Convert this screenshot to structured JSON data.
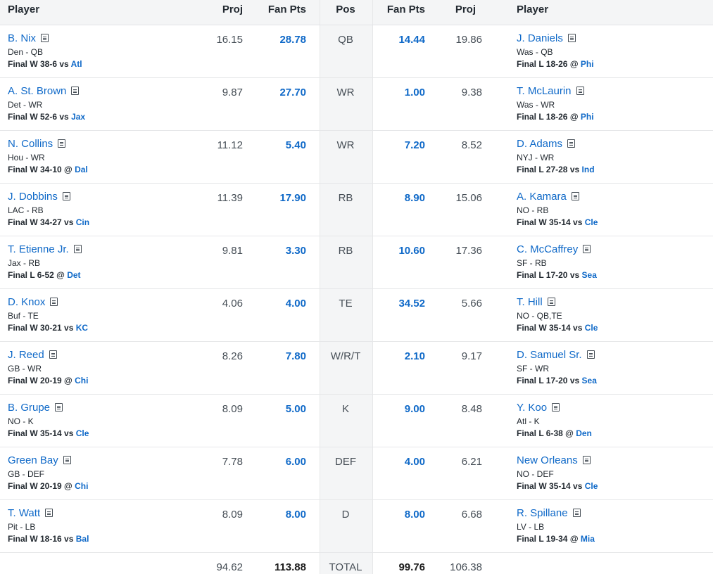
{
  "header": {
    "player_left": "Player",
    "proj_left": "Proj",
    "fanpts_left": "Fan Pts",
    "pos": "Pos",
    "fanpts_right": "Fan Pts",
    "proj_right": "Proj",
    "player_right": "Player"
  },
  "rows": [
    {
      "pos": "QB",
      "left": {
        "name": "B. Nix",
        "team": "Den - QB",
        "result": "Final W 38-6",
        "sep": "vs",
        "opp": "Atl",
        "proj": "16.15",
        "pts": "28.78"
      },
      "right": {
        "name": "J. Daniels",
        "team": "Was - QB",
        "result": "Final L 18-26",
        "sep": "@",
        "opp": "Phi",
        "proj": "19.86",
        "pts": "14.44"
      }
    },
    {
      "pos": "WR",
      "left": {
        "name": "A. St. Brown",
        "team": "Det - WR",
        "result": "Final W 52-6",
        "sep": "vs",
        "opp": "Jax",
        "proj": "9.87",
        "pts": "27.70"
      },
      "right": {
        "name": "T. McLaurin",
        "team": "Was - WR",
        "result": "Final L 18-26",
        "sep": "@",
        "opp": "Phi",
        "proj": "9.38",
        "pts": "1.00"
      }
    },
    {
      "pos": "WR",
      "left": {
        "name": "N. Collins",
        "team": "Hou - WR",
        "result": "Final W 34-10",
        "sep": "@",
        "opp": "Dal",
        "proj": "11.12",
        "pts": "5.40"
      },
      "right": {
        "name": "D. Adams",
        "team": "NYJ - WR",
        "result": "Final L 27-28",
        "sep": "vs",
        "opp": "Ind",
        "proj": "8.52",
        "pts": "7.20"
      }
    },
    {
      "pos": "RB",
      "left": {
        "name": "J. Dobbins",
        "team": "LAC - RB",
        "result": "Final W 34-27",
        "sep": "vs",
        "opp": "Cin",
        "proj": "11.39",
        "pts": "17.90"
      },
      "right": {
        "name": "A. Kamara",
        "team": "NO - RB",
        "result": "Final W 35-14",
        "sep": "vs",
        "opp": "Cle",
        "proj": "15.06",
        "pts": "8.90"
      }
    },
    {
      "pos": "RB",
      "left": {
        "name": "T. Etienne Jr.",
        "team": "Jax - RB",
        "result": "Final L 6-52",
        "sep": "@",
        "opp": "Det",
        "proj": "9.81",
        "pts": "3.30"
      },
      "right": {
        "name": "C. McCaffrey",
        "team": "SF - RB",
        "result": "Final L 17-20",
        "sep": "vs",
        "opp": "Sea",
        "proj": "17.36",
        "pts": "10.60"
      }
    },
    {
      "pos": "TE",
      "left": {
        "name": "D. Knox",
        "team": "Buf - TE",
        "result": "Final W 30-21",
        "sep": "vs",
        "opp": "KC",
        "proj": "4.06",
        "pts": "4.00"
      },
      "right": {
        "name": "T. Hill",
        "team": "NO - QB,TE",
        "result": "Final W 35-14",
        "sep": "vs",
        "opp": "Cle",
        "proj": "5.66",
        "pts": "34.52"
      }
    },
    {
      "pos": "W/R/T",
      "left": {
        "name": "J. Reed",
        "team": "GB - WR",
        "result": "Final W 20-19",
        "sep": "@",
        "opp": "Chi",
        "proj": "8.26",
        "pts": "7.80"
      },
      "right": {
        "name": "D. Samuel Sr.",
        "team": "SF - WR",
        "result": "Final L 17-20",
        "sep": "vs",
        "opp": "Sea",
        "proj": "9.17",
        "pts": "2.10"
      }
    },
    {
      "pos": "K",
      "left": {
        "name": "B. Grupe",
        "team": "NO - K",
        "result": "Final W 35-14",
        "sep": "vs",
        "opp": "Cle",
        "proj": "8.09",
        "pts": "5.00"
      },
      "right": {
        "name": "Y. Koo",
        "team": "Atl - K",
        "result": "Final L 6-38",
        "sep": "@",
        "opp": "Den",
        "proj": "8.48",
        "pts": "9.00"
      }
    },
    {
      "pos": "DEF",
      "left": {
        "name": "Green Bay",
        "team": "GB - DEF",
        "result": "Final W 20-19",
        "sep": "@",
        "opp": "Chi",
        "proj": "7.78",
        "pts": "6.00"
      },
      "right": {
        "name": "New Orleans",
        "team": "NO - DEF",
        "result": "Final W 35-14",
        "sep": "vs",
        "opp": "Cle",
        "proj": "6.21",
        "pts": "4.00"
      }
    },
    {
      "pos": "D",
      "left": {
        "name": "T. Watt",
        "team": "Pit - LB",
        "result": "Final W 18-16",
        "sep": "vs",
        "opp": "Bal",
        "proj": "8.09",
        "pts": "8.00"
      },
      "right": {
        "name": "R. Spillane",
        "team": "LV - LB",
        "result": "Final L 19-34",
        "sep": "@",
        "opp": "Mia",
        "proj": "6.68",
        "pts": "8.00"
      }
    }
  ],
  "totals": {
    "left_proj": "94.62",
    "left_pts": "113.88",
    "label": "TOTAL",
    "right_pts": "99.76",
    "right_proj": "106.38"
  },
  "icons": {
    "notes": "note-icon"
  },
  "colors": {
    "link": "#0f69c8",
    "header_bg": "#f4f5f6"
  }
}
